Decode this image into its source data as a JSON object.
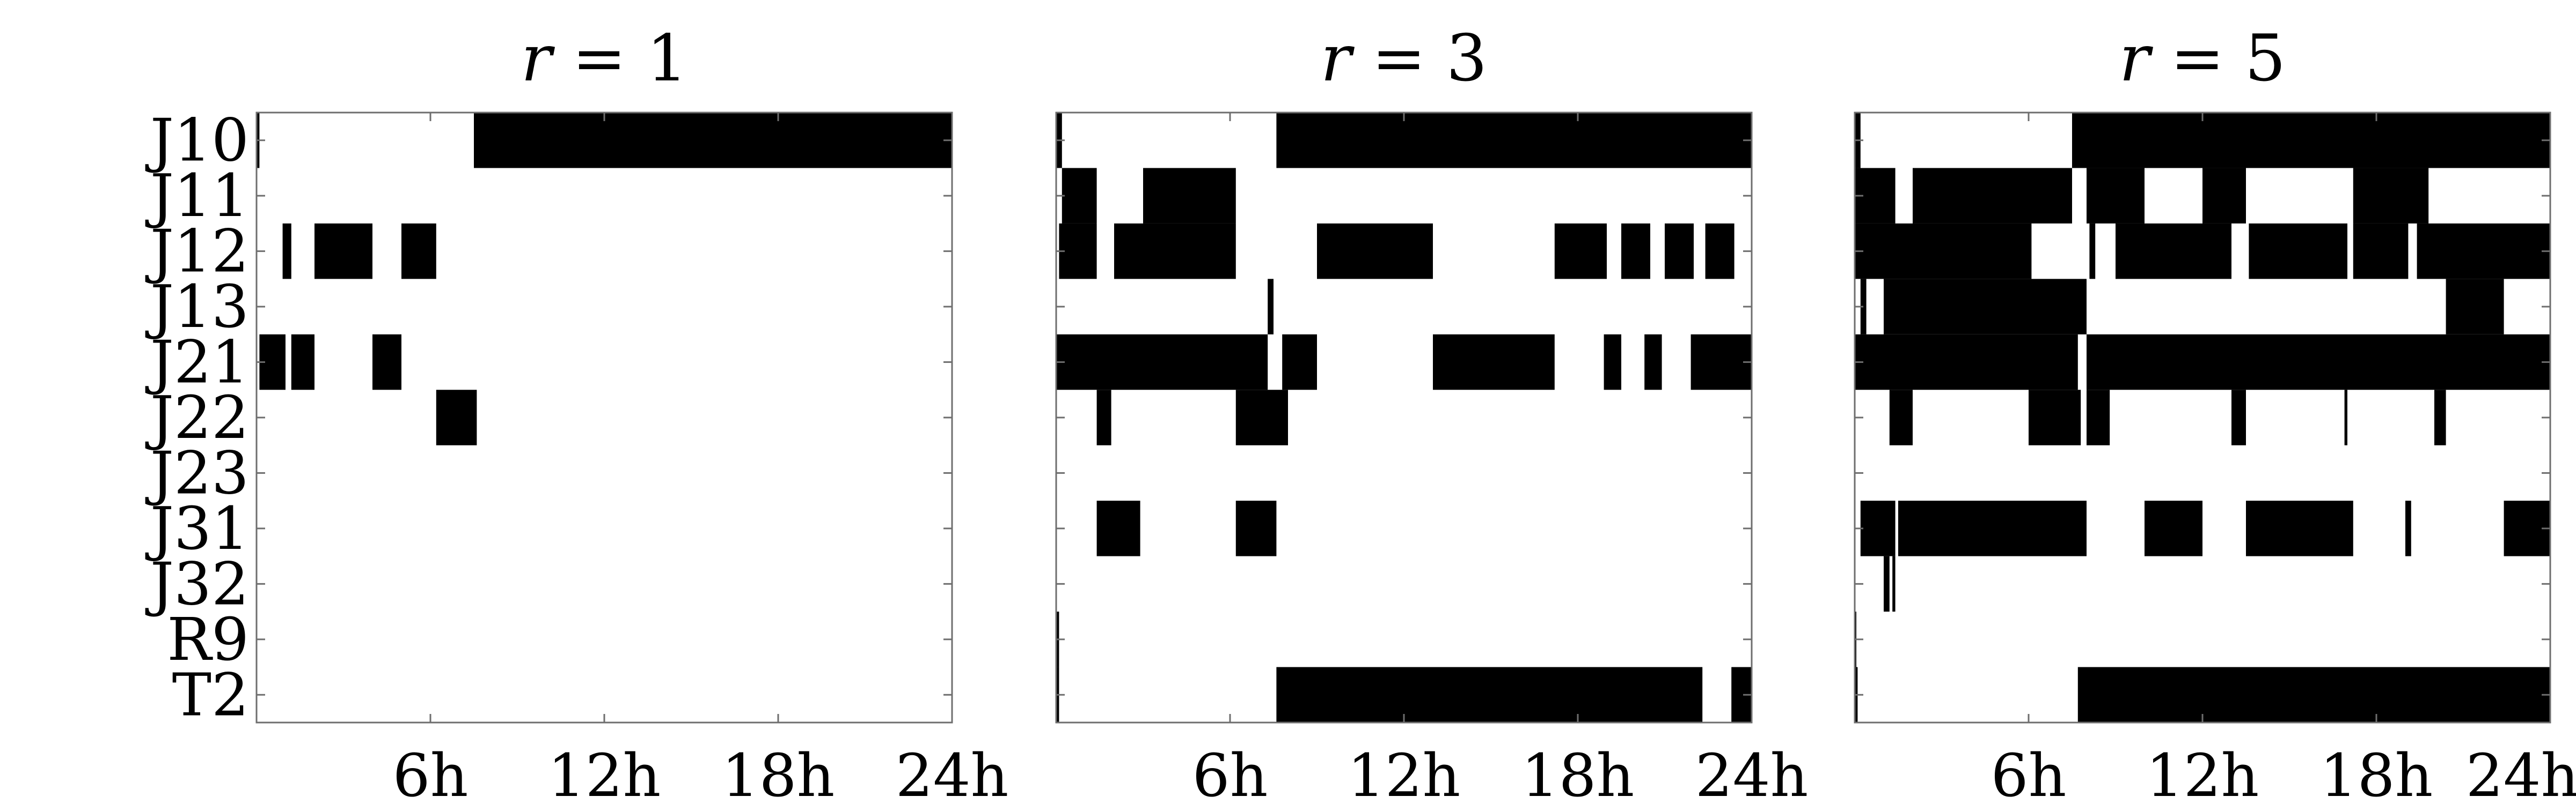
{
  "chart_data": [
    {
      "type": "heatmap",
      "title": "r = 1",
      "title_var": "r",
      "title_val": "1",
      "rows": [
        "J10",
        "J11",
        "J12",
        "J13",
        "J21",
        "J22",
        "J23",
        "J31",
        "J32",
        "R9",
        "T2"
      ],
      "xlim": [
        0,
        24
      ],
      "xticks": [
        6,
        12,
        18,
        24
      ],
      "xtick_labels": [
        "6h",
        "12h",
        "18h",
        "24h"
      ],
      "color_active": "#000000",
      "color_inactive": "#ffffff",
      "active_intervals_hours": {
        "J10": [
          [
            0.0,
            0.1
          ],
          [
            7.5,
            24.0
          ]
        ],
        "J11": [],
        "J12": [
          [
            0.9,
            1.2
          ],
          [
            2.0,
            4.0
          ],
          [
            5.0,
            6.2
          ]
        ],
        "J13": [],
        "J21": [
          [
            0.1,
            1.0
          ],
          [
            1.2,
            2.0
          ],
          [
            4.0,
            5.0
          ]
        ],
        "J22": [
          [
            6.2,
            7.6
          ]
        ],
        "J23": [],
        "J31": [],
        "J32": [],
        "R9": [],
        "T2": []
      }
    },
    {
      "type": "heatmap",
      "title": "r = 3",
      "title_var": "r",
      "title_val": "3",
      "rows": [
        "J10",
        "J11",
        "J12",
        "J13",
        "J21",
        "J22",
        "J23",
        "J31",
        "J32",
        "R9",
        "T2"
      ],
      "xlim": [
        0,
        24
      ],
      "xticks": [
        6,
        12,
        18,
        24
      ],
      "xtick_labels": [
        "6h",
        "12h",
        "18h",
        "24h"
      ],
      "color_active": "#000000",
      "color_inactive": "#ffffff",
      "active_intervals_hours": {
        "J10": [
          [
            0.0,
            0.2
          ],
          [
            7.6,
            24.0
          ]
        ],
        "J11": [
          [
            0.2,
            1.4
          ],
          [
            3.0,
            6.2
          ]
        ],
        "J12": [
          [
            0.1,
            1.4
          ],
          [
            2.0,
            6.2
          ],
          [
            9.0,
            13.0
          ],
          [
            17.2,
            19.0
          ],
          [
            19.5,
            20.5
          ],
          [
            21.0,
            22.0
          ],
          [
            22.4,
            23.4
          ]
        ],
        "J13": [
          [
            7.3,
            7.5
          ]
        ],
        "J21": [
          [
            0.0,
            7.3
          ],
          [
            7.8,
            9.0
          ],
          [
            13.0,
            17.2
          ],
          [
            18.9,
            19.5
          ],
          [
            20.3,
            20.9
          ],
          [
            21.9,
            24.0
          ]
        ],
        "J22": [
          [
            1.4,
            1.9
          ],
          [
            6.2,
            8.0
          ]
        ],
        "J23": [],
        "J31": [
          [
            1.4,
            2.9
          ],
          [
            6.2,
            7.6
          ]
        ],
        "J32": [],
        "R9": [
          [
            0.0,
            0.1
          ]
        ],
        "T2": [
          [
            0.0,
            0.1
          ],
          [
            7.6,
            22.3
          ],
          [
            23.3,
            24.0
          ]
        ]
      }
    },
    {
      "type": "heatmap",
      "title": "r = 5",
      "title_var": "r",
      "title_val": "5",
      "rows": [
        "J10",
        "J11",
        "J12",
        "J13",
        "J21",
        "J22",
        "J23",
        "J31",
        "J32",
        "R9",
        "T2"
      ],
      "xlim": [
        0,
        24
      ],
      "xticks": [
        6,
        12,
        18,
        24
      ],
      "xtick_labels": [
        "6h",
        "12h",
        "18h",
        "24h"
      ],
      "color_active": "#000000",
      "color_inactive": "#ffffff",
      "active_intervals_hours": {
        "J10": [
          [
            0.0,
            0.2
          ],
          [
            7.5,
            24.0
          ]
        ],
        "J11": [
          [
            0.0,
            1.4
          ],
          [
            2.0,
            7.5
          ],
          [
            8.0,
            10.0
          ],
          [
            12.0,
            13.5
          ],
          [
            17.2,
            19.8
          ]
        ],
        "J12": [
          [
            0.0,
            6.1
          ],
          [
            8.1,
            8.3
          ],
          [
            9.0,
            13.0
          ],
          [
            13.6,
            17.0
          ],
          [
            17.2,
            19.1
          ],
          [
            19.4,
            24.0
          ]
        ],
        "J13": [
          [
            0.2,
            0.4
          ],
          [
            1.0,
            8.0
          ],
          [
            20.4,
            22.4
          ]
        ],
        "J21": [
          [
            0.0,
            7.7
          ],
          [
            8.0,
            24.0
          ]
        ],
        "J22": [
          [
            1.2,
            2.0
          ],
          [
            6.0,
            7.8
          ],
          [
            8.0,
            8.8
          ],
          [
            13.0,
            13.5
          ],
          [
            16.9,
            17.0
          ],
          [
            20.0,
            20.4
          ]
        ],
        "J23": [],
        "J31": [
          [
            0.2,
            1.4
          ],
          [
            1.5,
            8.0
          ],
          [
            10.0,
            12.0
          ],
          [
            13.5,
            17.2
          ],
          [
            19.0,
            19.2
          ],
          [
            22.4,
            24.0
          ]
        ],
        "J32": [
          [
            1.0,
            1.2
          ],
          [
            1.3,
            1.4
          ]
        ],
        "R9": [
          [
            0.0,
            0.05
          ]
        ],
        "T2": [
          [
            0.0,
            0.1
          ],
          [
            7.7,
            24.0
          ]
        ]
      }
    }
  ]
}
